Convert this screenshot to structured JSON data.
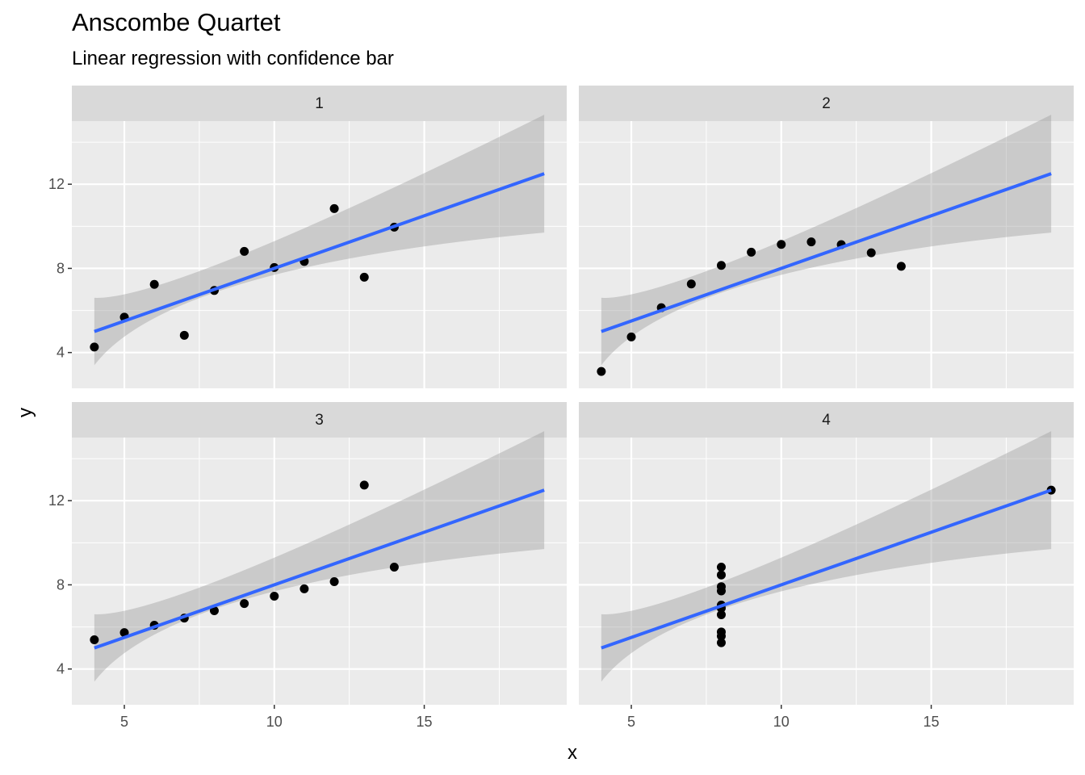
{
  "title": "Anscombe Quartet",
  "subtitle": "Linear regression with confidence bar",
  "chart_data": {
    "type": "scatter",
    "title": "Anscombe Quartet",
    "subtitle": "Linear regression with confidence bar",
    "xlabel": "x",
    "ylabel": "y",
    "xlim": [
      3.25,
      19.75
    ],
    "ylim": [
      2.3,
      15.0
    ],
    "xticks": [
      5,
      10,
      15
    ],
    "yticks": [
      4,
      8,
      12
    ],
    "grid": true,
    "facet_layout": "2x2",
    "colors": {
      "panel_bg": "#EBEBEB",
      "strip_bg": "#D9D9D9",
      "grid": "#FFFFFF",
      "point": "#000000",
      "line": "#3366FF",
      "band": "#999999"
    },
    "panels": [
      {
        "label": "1",
        "x": [
          10,
          8,
          13,
          9,
          11,
          14,
          6,
          4,
          12,
          7,
          5
        ],
        "y": [
          8.04,
          6.95,
          7.58,
          8.81,
          8.33,
          9.96,
          7.24,
          4.26,
          10.84,
          4.82,
          5.68
        ],
        "fit": {
          "intercept": 3.0,
          "slope": 0.5,
          "x_range": [
            4,
            19
          ]
        },
        "band_lower": [
          [
            4,
            3.4
          ],
          [
            9,
            7.3
          ],
          [
            19,
            9.7
          ]
        ],
        "band_upper": [
          [
            4,
            6.6
          ],
          [
            9,
            8.7
          ],
          [
            19,
            15.3
          ]
        ]
      },
      {
        "label": "2",
        "x": [
          10,
          8,
          13,
          9,
          11,
          14,
          6,
          4,
          12,
          7,
          5
        ],
        "y": [
          9.14,
          8.14,
          8.74,
          8.77,
          9.26,
          8.1,
          6.13,
          3.1,
          9.13,
          7.26,
          4.74
        ],
        "fit": {
          "intercept": 3.0,
          "slope": 0.5,
          "x_range": [
            4,
            19
          ]
        },
        "band_lower": [
          [
            4,
            3.4
          ],
          [
            9,
            7.3
          ],
          [
            19,
            9.7
          ]
        ],
        "band_upper": [
          [
            4,
            6.6
          ],
          [
            9,
            8.7
          ],
          [
            19,
            15.3
          ]
        ]
      },
      {
        "label": "3",
        "x": [
          10,
          8,
          13,
          9,
          11,
          14,
          6,
          4,
          12,
          7,
          5
        ],
        "y": [
          7.46,
          6.77,
          12.74,
          7.11,
          7.81,
          8.84,
          6.08,
          5.39,
          8.15,
          6.42,
          5.73
        ],
        "fit": {
          "intercept": 3.0,
          "slope": 0.5,
          "x_range": [
            4,
            19
          ]
        },
        "band_lower": [
          [
            4,
            3.4
          ],
          [
            9,
            7.3
          ],
          [
            19,
            9.7
          ]
        ],
        "band_upper": [
          [
            4,
            6.6
          ],
          [
            9,
            8.7
          ],
          [
            19,
            15.3
          ]
        ]
      },
      {
        "label": "4",
        "x": [
          8,
          8,
          8,
          8,
          8,
          8,
          8,
          19,
          8,
          8,
          8
        ],
        "y": [
          6.58,
          5.76,
          7.71,
          8.84,
          8.47,
          7.04,
          5.25,
          12.5,
          5.56,
          7.91,
          6.89
        ],
        "fit": {
          "intercept": 3.0,
          "slope": 0.5,
          "x_range": [
            4,
            19
          ]
        },
        "band_lower": [
          [
            4,
            3.4
          ],
          [
            9,
            7.3
          ],
          [
            19,
            9.7
          ]
        ],
        "band_upper": [
          [
            4,
            6.6
          ],
          [
            9,
            8.7
          ],
          [
            19,
            15.3
          ]
        ]
      }
    ]
  }
}
